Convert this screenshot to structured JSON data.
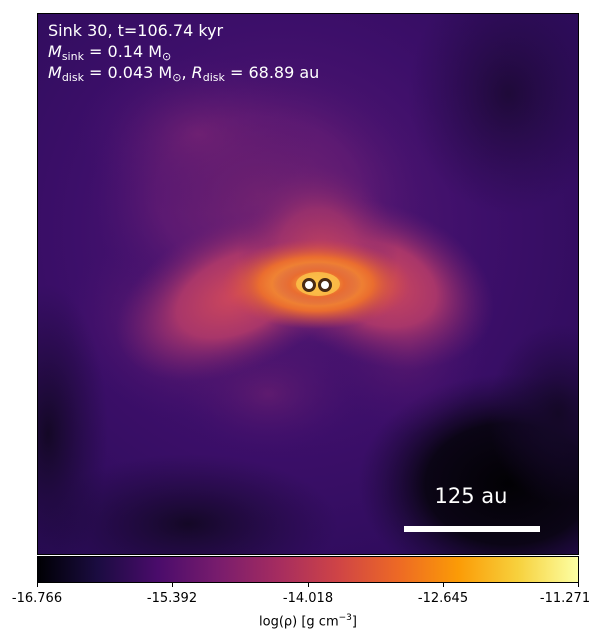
{
  "panel": {
    "title_line": "Sink 30, t=106.74 kyr",
    "sink_mass": {
      "symbol": "M",
      "subscript": "sink",
      "value_text": " = 0.14 M",
      "solar_symbol": "⊙"
    },
    "disk": {
      "mass_symbol": "M",
      "mass_subscript": "disk",
      "mass_value_text": " = 0.043 M",
      "solar_symbol": "⊙",
      "separator": ", ",
      "radius_symbol": "R",
      "radius_subscript": "disk",
      "radius_value_text": " = 68.89 au"
    },
    "scale_bar_label": "125 au",
    "sinks": [
      {
        "name": "sink-a"
      },
      {
        "name": "sink-b"
      }
    ]
  },
  "colorbar": {
    "colormap": "inferno",
    "ticks": [
      "-16.766",
      "-15.392",
      "-14.018",
      "-12.645",
      "-11.271"
    ],
    "label_main": "log(ρ) [g cm",
    "label_exp": "−3",
    "label_close": "]"
  },
  "colors": {
    "background_dark": "#2b0e5c",
    "void": "#050209",
    "disk_core": "#fbb83a",
    "sink_ring": "#1a1a1a",
    "sink_fill": "#ffffff"
  }
}
